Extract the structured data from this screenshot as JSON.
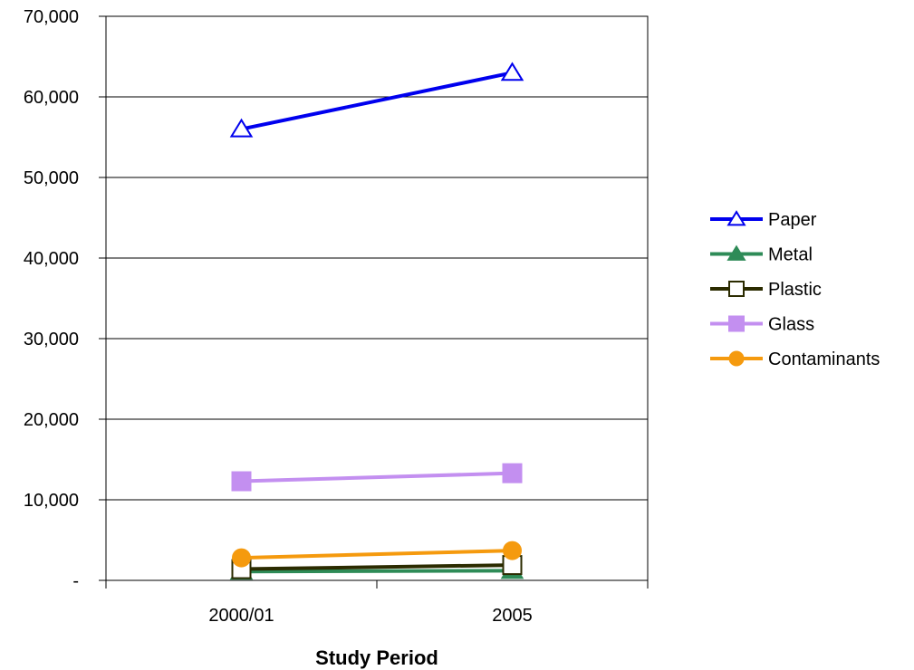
{
  "chart_data": {
    "type": "line",
    "title": "",
    "xlabel": "Study Period",
    "ylabel": "",
    "categories": [
      "2000/01",
      "2005"
    ],
    "ylim": [
      0,
      70000
    ],
    "yticks": [
      {
        "value": 0,
        "label": "-"
      },
      {
        "value": 10000,
        "label": "10,000"
      },
      {
        "value": 20000,
        "label": "20,000"
      },
      {
        "value": 30000,
        "label": "30,000"
      },
      {
        "value": 40000,
        "label": "40,000"
      },
      {
        "value": 50000,
        "label": "50,000"
      },
      {
        "value": 60000,
        "label": "60,000"
      },
      {
        "value": 70000,
        "label": "70,000"
      }
    ],
    "grid": true,
    "legend_position": "right",
    "series": [
      {
        "name": "Paper",
        "values": [
          56000,
          63000
        ],
        "color": "#0000ee",
        "marker": "triangle-open"
      },
      {
        "name": "Metal",
        "values": [
          1100,
          1200
        ],
        "color": "#2e8b57",
        "marker": "triangle-filled"
      },
      {
        "name": "Plastic",
        "values": [
          1400,
          1900
        ],
        "color": "#2b2b00",
        "marker": "square-open"
      },
      {
        "name": "Glass",
        "values": [
          12300,
          13300
        ],
        "color": "#c38ff0",
        "marker": "square-filled"
      },
      {
        "name": "Contaminants",
        "values": [
          2800,
          3700
        ],
        "color": "#f59a0e",
        "marker": "circle-filled"
      }
    ]
  }
}
